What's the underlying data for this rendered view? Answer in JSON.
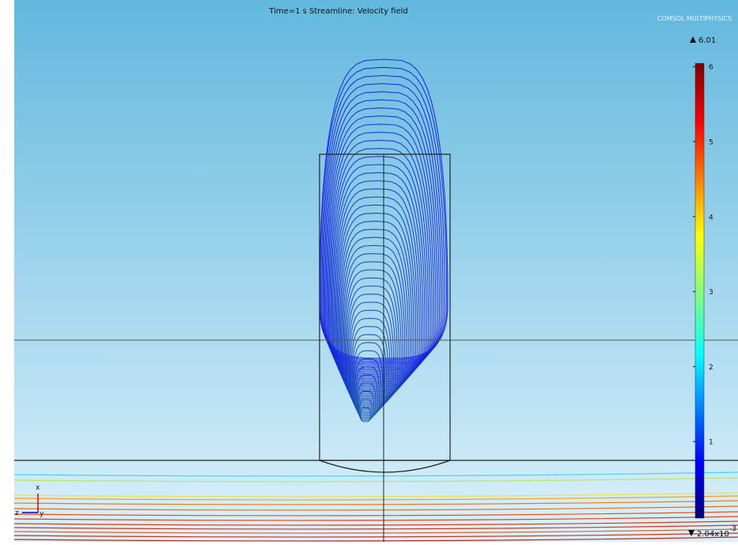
{
  "header": {
    "title": "Time=1 s   Streamline: Velocity field",
    "logo": "COMSOL MULTIPHYSICS"
  },
  "colorbar": {
    "max_label": "6.01",
    "min_label": "2.04x10",
    "min_exponent": "-3",
    "ticks": [
      1,
      2,
      3,
      4,
      5,
      6
    ]
  },
  "axes_triad": {
    "x": "x",
    "y": "y",
    "z": "z"
  }
}
